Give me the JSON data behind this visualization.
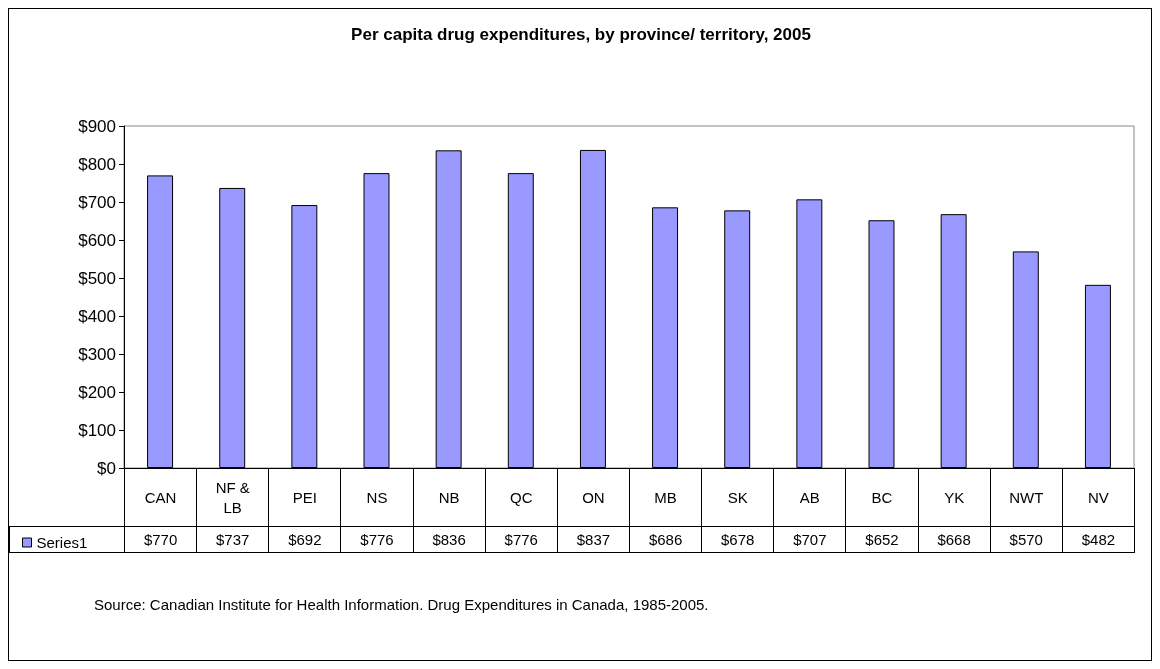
{
  "chart_data": {
    "type": "bar",
    "title": "Per capita drug expenditures, by province/ territory, 2005",
    "categories": [
      "CAN",
      "NF & LB",
      "PEI",
      "NS",
      "NB",
      "QC",
      "ON",
      "MB",
      "SK",
      "AB",
      "BC",
      "YK",
      "NWT",
      "NV"
    ],
    "series": [
      {
        "name": "Series1",
        "color": "#9999ff",
        "values": [
          770,
          737,
          692,
          776,
          836,
          776,
          837,
          686,
          678,
          707,
          652,
          668,
          570,
          482
        ],
        "value_labels": [
          "$770",
          "$737",
          "$692",
          "$776",
          "$836",
          "$776",
          "$837",
          "$686",
          "$678",
          "$707",
          "$652",
          "$668",
          "$570",
          "$482"
        ]
      }
    ],
    "ylim": [
      0,
      900
    ],
    "yticks": [
      {
        "value": 0,
        "label": "$0"
      },
      {
        "value": 100,
        "label": "$100"
      },
      {
        "value": 200,
        "label": "$200"
      },
      {
        "value": 300,
        "label": "$300"
      },
      {
        "value": 400,
        "label": "$400"
      },
      {
        "value": 500,
        "label": "$500"
      },
      {
        "value": 600,
        "label": "$600"
      },
      {
        "value": 700,
        "label": "$700"
      },
      {
        "value": 800,
        "label": "$800"
      },
      {
        "value": 900,
        "label": "$900"
      }
    ],
    "grid": false,
    "legend": "bottom left",
    "annotations": [
      "Source: Canadian Institute for Health Information. Drug Expenditures in Canada, 1985-2005."
    ]
  }
}
